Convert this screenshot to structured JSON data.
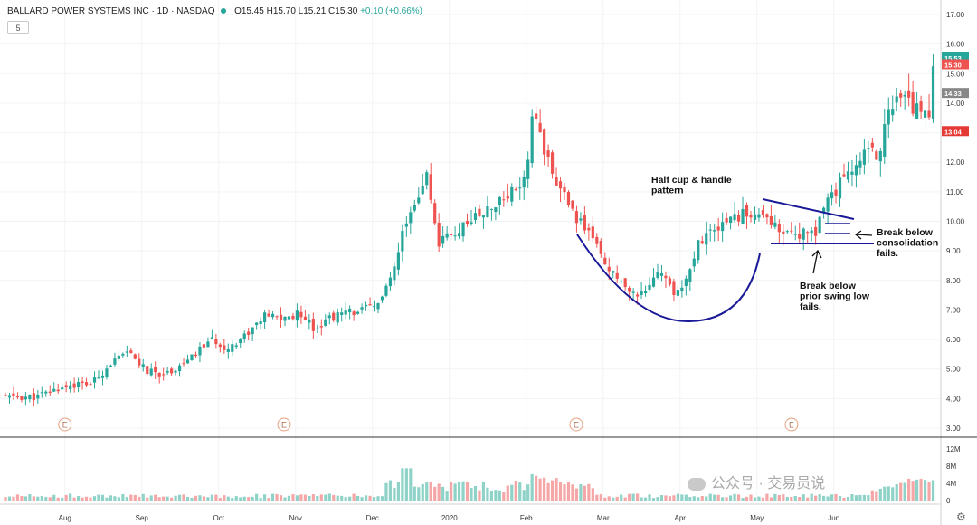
{
  "header": {
    "title": "BALLARD POWER SYSTEMS INC · 1D · NASDAQ",
    "ohlc": "O15.45 H15.70 L15.21 C15.30",
    "change": "+0.10 (+0.66%)",
    "interval_label": "5"
  },
  "chart_data": {
    "type": "candlestick",
    "title": "BALLARD POWER SYSTEMS INC · 1D · NASDAQ",
    "y_axis": {
      "ticks": [
        "3.00",
        "4.00",
        "5.00",
        "6.00",
        "7.00",
        "8.00",
        "9.00",
        "10.00",
        "11.00",
        "12.00",
        "13.00",
        "14.00",
        "15.00",
        "16.00",
        "17.00"
      ],
      "range": [
        2.8,
        17.2
      ]
    },
    "volume_axis": {
      "ticks": [
        "12M",
        "8M",
        "4M",
        "0"
      ],
      "range": [
        0,
        12
      ]
    },
    "x_axis": {
      "labels": [
        "Aug",
        "Sep",
        "Oct",
        "Nov",
        "Dec",
        "2020",
        "Feb",
        "Mar",
        "Apr",
        "May",
        "Jun"
      ]
    },
    "price_labels": [
      {
        "value": 15.53,
        "text": "15.53",
        "color": "#26a69a"
      },
      {
        "value": 15.3,
        "text": "15.30",
        "color": "#ef5350"
      },
      {
        "value": 14.33,
        "text": "14.33",
        "color": "#888888"
      },
      {
        "value": 13.04,
        "text": "13.04",
        "color": "#e53935"
      }
    ],
    "earnings_markers": [
      {
        "label": "E",
        "month_pos": 0.45
      },
      {
        "label": "E",
        "month_pos": 3.3
      },
      {
        "label": "E",
        "month_pos": 7.1
      },
      {
        "label": "E",
        "month_pos": 9.9
      }
    ],
    "waypoints": [
      [
        0,
        4.05
      ],
      [
        0.5,
        4.05
      ],
      [
        1,
        4.45
      ],
      [
        1.4,
        4.5
      ],
      [
        1.7,
        5.2
      ],
      [
        2,
        5.55
      ],
      [
        2.3,
        4.9
      ],
      [
        2.6,
        4.85
      ],
      [
        3,
        5.35
      ],
      [
        3.3,
        6.0
      ],
      [
        3.6,
        5.7
      ],
      [
        3.9,
        6.2
      ],
      [
        4.2,
        6.8
      ],
      [
        4.5,
        6.7
      ],
      [
        4.8,
        6.9
      ],
      [
        5,
        6.35
      ],
      [
        5.2,
        6.7
      ],
      [
        5.5,
        6.9
      ],
      [
        6,
        7.1
      ],
      [
        6.2,
        8.0
      ],
      [
        6.4,
        9.4
      ],
      [
        6.55,
        10.2
      ],
      [
        6.8,
        11.6
      ],
      [
        7.0,
        9.2
      ],
      [
        7.2,
        9.5
      ],
      [
        7.5,
        10.0
      ],
      [
        7.8,
        10.3
      ],
      [
        8.1,
        10.8
      ],
      [
        8.4,
        11.5
      ],
      [
        8.55,
        13.9
      ],
      [
        8.7,
        12.3
      ],
      [
        9.0,
        11.0
      ],
      [
        9.2,
        10.1
      ],
      [
        9.5,
        9.5
      ],
      [
        9.7,
        8.5
      ],
      [
        9.9,
        8.0
      ],
      [
        10.2,
        7.5
      ],
      [
        10.4,
        7.8
      ],
      [
        10.6,
        8.4
      ],
      [
        10.8,
        7.5
      ],
      [
        11.0,
        8.1
      ],
      [
        11.2,
        9.2
      ],
      [
        11.4,
        9.8
      ],
      [
        11.7,
        10.0
      ],
      [
        12.0,
        10.3
      ],
      [
        12.3,
        10.1
      ],
      [
        12.5,
        9.7
      ],
      [
        12.8,
        9.5
      ],
      [
        13.1,
        9.7
      ],
      [
        13.3,
        10.6
      ],
      [
        13.6,
        11.6
      ],
      [
        13.9,
        12.5
      ],
      [
        14.1,
        12.2
      ],
      [
        14.3,
        13.7
      ],
      [
        14.5,
        14.2
      ],
      [
        14.8,
        13.6
      ],
      [
        14.96,
        13.8
      ],
      [
        15.0,
        15.3
      ]
    ],
    "annotations": [
      {
        "text": [
          "Half cup & handle",
          "pattern"
        ]
      },
      {
        "text": [
          "Break below",
          "consolidation",
          "fails."
        ]
      },
      {
        "text": [
          "Break below",
          "prior swing low",
          "fails."
        ]
      }
    ],
    "colors": {
      "up": "#26a69a",
      "down": "#ef5350",
      "annotation": "#1a1a99"
    },
    "grid": true
  },
  "watermark": {
    "text": "公众号 · 交易员说"
  }
}
